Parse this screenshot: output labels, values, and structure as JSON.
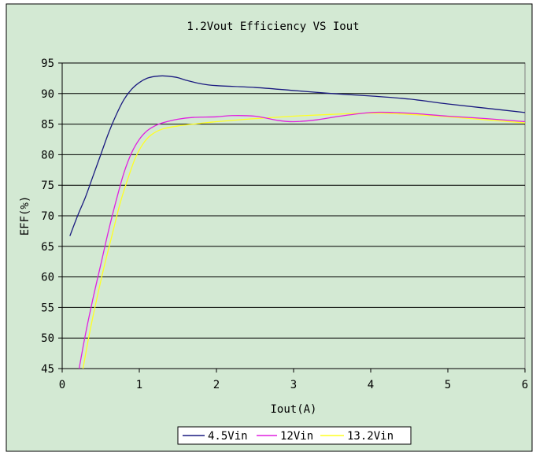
{
  "chart_data": {
    "type": "line",
    "title": "1.2Vout Efficiency VS Iout",
    "xlabel": "Iout(A)",
    "ylabel": "EFF(%)",
    "xlim": [
      0,
      6
    ],
    "ylim": [
      45,
      95
    ],
    "x_ticks": [
      "0",
      "1",
      "2",
      "3",
      "4",
      "5",
      "6"
    ],
    "y_ticks": [
      "45",
      "50",
      "55",
      "60",
      "65",
      "70",
      "75",
      "80",
      "85",
      "90",
      "95"
    ],
    "grid": "horizontal",
    "legend_position": "bottom",
    "colors": {
      "background": "#d3e9d3",
      "plot_background": "#d3e9d3"
    },
    "series": [
      {
        "name": "4.5Vin",
        "color": "#1a1a80",
        "x": [
          0.1,
          0.2,
          0.3,
          0.4,
          0.5,
          0.6,
          0.7,
          0.8,
          0.9,
          1.0,
          1.1,
          1.2,
          1.3,
          1.4,
          1.5,
          1.6,
          1.8,
          2.0,
          2.5,
          3.0,
          3.5,
          4.0,
          4.5,
          5.0,
          5.5,
          6.0
        ],
        "y": [
          66.7,
          70.0,
          73.0,
          76.5,
          80.0,
          83.5,
          86.5,
          89.0,
          90.7,
          91.8,
          92.5,
          92.8,
          92.9,
          92.8,
          92.6,
          92.2,
          91.6,
          91.3,
          91.0,
          90.5,
          90.0,
          89.6,
          89.1,
          88.3,
          87.6,
          86.9
        ]
      },
      {
        "name": "12Vin",
        "color": "#e020e0",
        "x": [
          0.22,
          0.3,
          0.4,
          0.5,
          0.6,
          0.7,
          0.8,
          0.9,
          1.0,
          1.1,
          1.2,
          1.3,
          1.5,
          1.7,
          2.0,
          2.2,
          2.5,
          2.8,
          3.0,
          3.3,
          3.6,
          4.0,
          4.3,
          4.6,
          5.0,
          5.5,
          6.0
        ],
        "y": [
          45.0,
          50.5,
          56.5,
          62.0,
          67.5,
          72.5,
          77.0,
          80.3,
          82.5,
          83.9,
          84.7,
          85.2,
          85.8,
          86.1,
          86.2,
          86.4,
          86.3,
          85.6,
          85.4,
          85.7,
          86.3,
          86.9,
          86.9,
          86.7,
          86.3,
          85.9,
          85.4
        ]
      },
      {
        "name": "13.2Vin",
        "color": "#ffff22",
        "x": [
          0.27,
          0.35,
          0.45,
          0.55,
          0.65,
          0.75,
          0.85,
          0.95,
          1.05,
          1.15,
          1.3,
          1.5,
          1.7,
          2.0,
          2.5,
          3.0,
          3.5,
          4.0,
          4.5,
          5.0,
          5.5,
          6.0
        ],
        "y": [
          45.0,
          50.5,
          56.5,
          62.0,
          67.0,
          72.0,
          76.0,
          79.5,
          81.8,
          83.2,
          84.2,
          84.7,
          85.0,
          85.4,
          85.9,
          86.3,
          86.6,
          86.8,
          86.6,
          86.2,
          85.7,
          85.2
        ]
      }
    ]
  }
}
